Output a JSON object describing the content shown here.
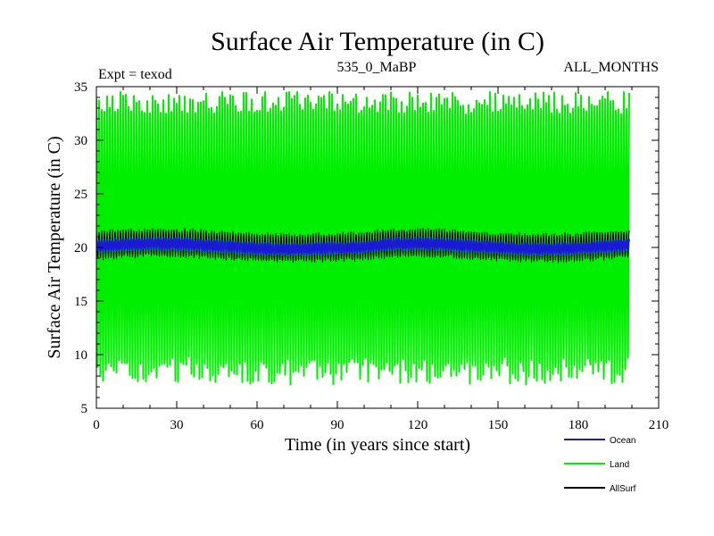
{
  "chart_data": {
    "type": "line",
    "title": "Surface Air Temperature (in C)",
    "subtitle_left": "Expt = texod",
    "subtitle_center": "535_0_MaBP",
    "subtitle_right": "ALL_MONTHS",
    "xlabel": "Time (in years since start)",
    "ylabel": "Surface Air Temperature (in C)",
    "xlim": [
      0,
      210
    ],
    "ylim": [
      5,
      35
    ],
    "xticks": [
      0,
      30,
      60,
      90,
      120,
      150,
      180,
      210
    ],
    "yticks": [
      5,
      10,
      15,
      20,
      25,
      30,
      35
    ],
    "x_range": [
      0,
      199
    ],
    "grid": false,
    "legend_position": "bottom-right",
    "series": [
      {
        "name": "Land",
        "color": "#00ee00",
        "style": "monthly seasonal cycle",
        "mean": 20.5,
        "typical_max": 33.5,
        "typical_min": 8.5,
        "max_peak": 34.5,
        "min_trough": 6.2
      },
      {
        "name": "Ocean",
        "color": "#1a1ad6",
        "style": "monthly seasonal cycle",
        "mean": 20.1,
        "amplitude": 0.5
      },
      {
        "name": "AllSurf",
        "color": "#000000",
        "style": "monthly seasonal cycle",
        "mean": 20.2,
        "amplitude": 1.2
      }
    ],
    "legend": [
      "Ocean",
      "Land",
      "AllSurf"
    ]
  }
}
